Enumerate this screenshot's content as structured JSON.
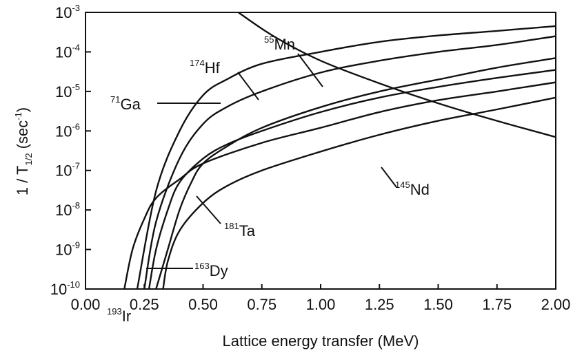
{
  "chart_data": {
    "type": "line",
    "title": "",
    "xlabel": "Lattice energy transfer (MeV)",
    "ylabel": {
      "prefix": "1 / T",
      "sub": "1/2",
      "mid": " (sec",
      "sup": "-1",
      "suffix": ")"
    },
    "xlim": [
      0,
      2
    ],
    "ylim": [
      1e-10,
      0.001
    ],
    "yscale": "log",
    "grid": false,
    "legend": "none",
    "x_ticks": [
      "0.00",
      "0.25",
      "0.50",
      "0.75",
      "1.00",
      "1.25",
      "1.50",
      "1.75",
      "2.00"
    ],
    "y_ticks": [
      {
        "base": "10",
        "exp": "-3"
      },
      {
        "base": "10",
        "exp": "-4"
      },
      {
        "base": "10",
        "exp": "-5"
      },
      {
        "base": "10",
        "exp": "-6"
      },
      {
        "base": "10",
        "exp": "-7"
      },
      {
        "base": "10",
        "exp": "-8"
      },
      {
        "base": "10",
        "exp": "-9"
      },
      {
        "base": "10",
        "exp": "-10"
      }
    ],
    "series": [
      {
        "name": "55Mn",
        "x": [
          0.65,
          0.8,
          1.0,
          1.25,
          1.5,
          1.75,
          2.0
        ],
        "y": [
          0.001,
          0.00025,
          6e-05,
          1.6e-05,
          5e-06,
          1.8e-06,
          7e-07
        ]
      },
      {
        "name": "174Hf",
        "x": [
          0.22,
          0.3,
          0.4,
          0.5,
          0.6,
          0.75,
          1.0,
          1.25,
          1.5,
          1.75,
          2.0
        ],
        "y": [
          1e-10,
          3e-08,
          1e-06,
          8e-06,
          2e-05,
          5e-05,
          0.0001,
          0.00018,
          0.00026,
          0.00034,
          0.00045
        ]
      },
      {
        "name": "71Ga",
        "x": [
          0.25,
          0.3,
          0.4,
          0.5,
          0.6,
          0.75,
          1.0,
          1.25,
          1.5,
          1.75,
          2.0
        ],
        "y": [
          1e-10,
          5e-09,
          2e-07,
          1.5e-06,
          4e-06,
          1e-05,
          3e-05,
          6e-05,
          0.0001,
          0.00015,
          0.00025
        ]
      },
      {
        "name": "193Ir",
        "x": [
          0.165,
          0.2,
          0.25,
          0.3,
          0.4,
          0.5,
          0.75,
          1.0,
          1.25,
          1.5,
          1.75,
          2.0
        ],
        "y": [
          1e-10,
          1e-09,
          6e-09,
          2e-08,
          6e-08,
          1.5e-07,
          5e-07,
          1.2e-06,
          3e-06,
          6e-06,
          1e-05,
          1.7e-05
        ]
      },
      {
        "name": "163Dy",
        "x": [
          0.27,
          0.3,
          0.35,
          0.4,
          0.5,
          0.6,
          0.75,
          1.0,
          1.25,
          1.5,
          1.75,
          2.0
        ],
        "y": [
          1e-10,
          1e-09,
          1e-08,
          5e-08,
          2e-07,
          4.5e-07,
          1e-06,
          3e-06,
          7e-06,
          1.3e-05,
          2.2e-05,
          3.5e-05
        ]
      },
      {
        "name": "181Ta",
        "x": [
          0.3,
          0.35,
          0.4,
          0.45,
          0.5,
          0.6,
          0.75,
          1.0,
          1.25,
          1.5,
          1.75,
          2.0
        ],
        "y": [
          1e-10,
          1e-09,
          1e-08,
          5e-08,
          1.5e-07,
          4e-07,
          1.2e-06,
          4e-06,
          1e-05,
          2e-05,
          4e-05,
          7e-05
        ]
      },
      {
        "name": "145Nd",
        "x": [
          0.33,
          0.35,
          0.4,
          0.5,
          0.6,
          0.75,
          1.0,
          1.25,
          1.5,
          1.75,
          2.0
        ],
        "y": [
          1e-10,
          5e-10,
          3e-09,
          1.5e-08,
          4e-08,
          1e-07,
          3e-07,
          8e-07,
          1.8e-06,
          3.5e-06,
          7e-06
        ]
      }
    ],
    "annotations": [
      {
        "mass": "55",
        "element": "Mn"
      },
      {
        "mass": "174",
        "element": "Hf"
      },
      {
        "mass": "71",
        "element": "Ga"
      },
      {
        "mass": "193",
        "element": "Ir"
      },
      {
        "mass": "163",
        "element": "Dy"
      },
      {
        "mass": "181",
        "element": "Ta"
      },
      {
        "mass": "145",
        "element": "Nd"
      }
    ]
  }
}
